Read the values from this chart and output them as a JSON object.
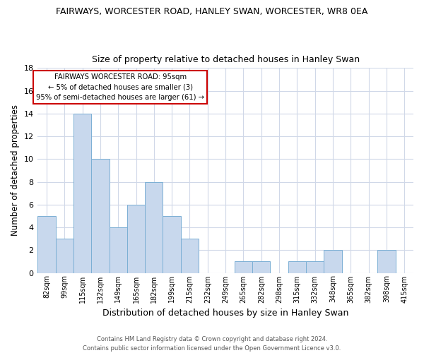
{
  "title": "FAIRWAYS, WORCESTER ROAD, HANLEY SWAN, WORCESTER, WR8 0EA",
  "subtitle": "Size of property relative to detached houses in Hanley Swan",
  "xlabel": "Distribution of detached houses by size in Hanley Swan",
  "ylabel": "Number of detached properties",
  "categories": [
    "82sqm",
    "99sqm",
    "115sqm",
    "132sqm",
    "149sqm",
    "165sqm",
    "182sqm",
    "199sqm",
    "215sqm",
    "232sqm",
    "249sqm",
    "265sqm",
    "282sqm",
    "298sqm",
    "315sqm",
    "332sqm",
    "348sqm",
    "365sqm",
    "382sqm",
    "398sqm",
    "415sqm"
  ],
  "values": [
    5,
    3,
    14,
    10,
    4,
    6,
    8,
    5,
    3,
    0,
    0,
    1,
    1,
    0,
    1,
    1,
    2,
    0,
    0,
    2,
    0
  ],
  "bar_color": "#c8d8ed",
  "bar_edge_color": "#7bafd4",
  "ylim": [
    0,
    18
  ],
  "yticks": [
    0,
    2,
    4,
    6,
    8,
    10,
    12,
    14,
    16,
    18
  ],
  "annotation_title": "FAIRWAYS WORCESTER ROAD: 95sqm",
  "annotation_line2": "← 5% of detached houses are smaller (3)",
  "annotation_line3": "95% of semi-detached houses are larger (61) →",
  "annotation_box_color": "#ffffff",
  "annotation_box_edge": "#cc0000",
  "footer1": "Contains HM Land Registry data © Crown copyright and database right 2024.",
  "footer2": "Contains public sector information licensed under the Open Government Licence v3.0.",
  "grid_color": "#d0d8e8",
  "background_color": "#ffffff"
}
